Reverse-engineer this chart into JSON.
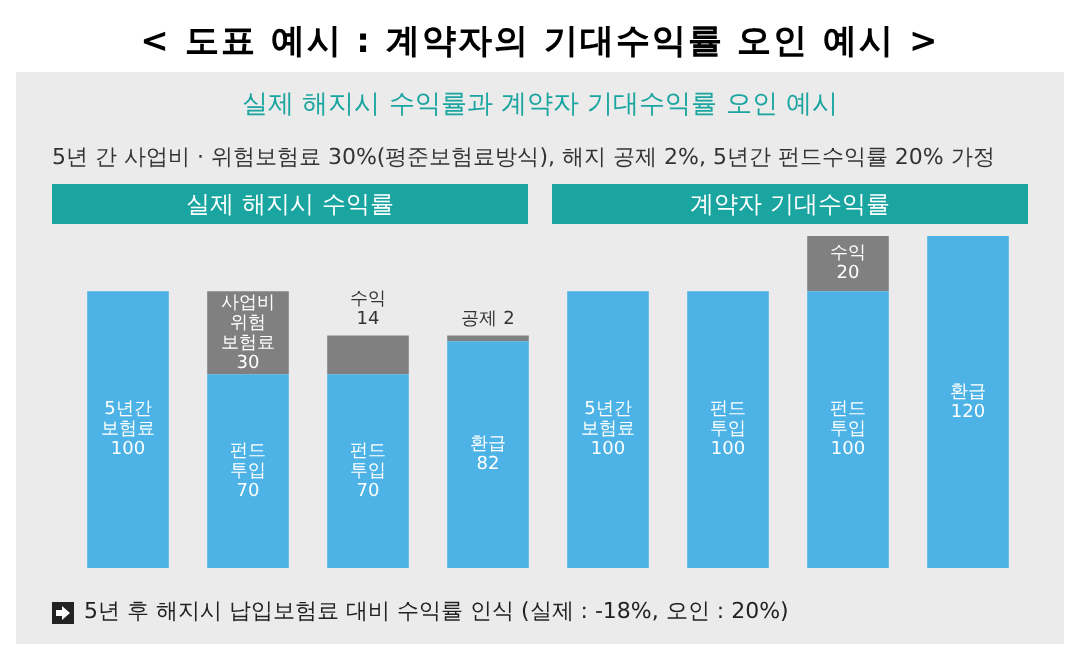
{
  "chart_data": {
    "type": "bar",
    "title": "< 도표 예시 : 계약자의 기대수익률 오인 예시 >",
    "subtitle": "실제 해지시 수익률과 계약자 기대수익률 오인 예시",
    "annotations": [
      "5년 간 사업비 · 위험보험료 30%(평준보험료방식), 해지 공제 2%, 5년간 펀드수익률 20% 가정",
      "실제 해지시 수익률",
      "계약자 기대수익률",
      "5년 후 해지시 납입보험료 대비 수익률 인식 (실제 : -18%, 오인 : 20%)"
    ],
    "categories": [
      null,
      null,
      null,
      null,
      null,
      null,
      null,
      null
    ],
    "stacked": true,
    "legend": false,
    "grid": false,
    "tick_labels": false,
    "series": [
      {
        "color": "#4db3e6",
        "values": [
          100,
          70,
          70,
          82,
          100,
          100,
          100,
          120
        ],
        "value_labels": [
          "5년간\n보험료\n100",
          "펀드\n투입\n70",
          "펀드\n투입\n70",
          "환급\n82",
          "5년간\n보험료\n100",
          "펀드\n투입\n100",
          "펀드\n투입\n100",
          "환급\n120"
        ]
      },
      {
        "color": "#808080",
        "values": [
          null,
          30,
          14,
          2,
          null,
          null,
          20,
          null
        ],
        "value_labels": [
          null,
          "사업비\n위험\n보험료\n30",
          "수익\n14",
          "공제 2",
          null,
          null,
          "수익\n20",
          null
        ]
      }
    ]
  }
}
